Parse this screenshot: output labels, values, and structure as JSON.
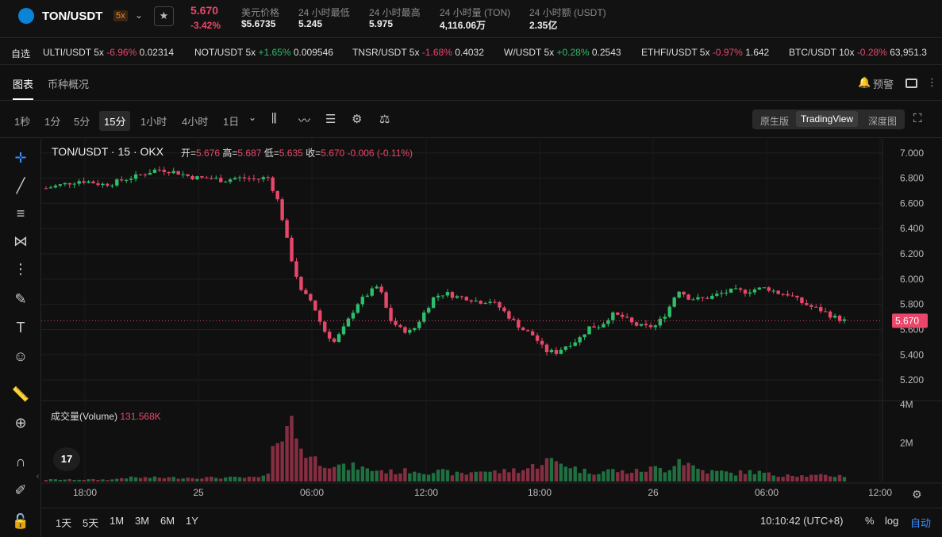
{
  "header": {
    "pair": "TON/USDT",
    "leverage": "5x",
    "last_price": "5.670",
    "change": "-3.42%",
    "stats": [
      {
        "k": "美元价格",
        "v": "$5.6735"
      },
      {
        "k": "24 小时最低",
        "v": "5.245"
      },
      {
        "k": "24 小时最高",
        "v": "5.975"
      },
      {
        "k": "24 小时量 (TON)",
        "v": "4,116.06万"
      },
      {
        "k": "24 小时额 (USDT)",
        "v": "2.35亿"
      }
    ]
  },
  "watchlist": {
    "label": "自选",
    "items": [
      {
        "pair": "ULTI/USDT 5x",
        "chg": "-6.96%",
        "price": "0.02314",
        "dir": "down"
      },
      {
        "pair": "NOT/USDT 5x",
        "chg": "+1.65%",
        "price": "0.009546",
        "dir": "up"
      },
      {
        "pair": "TNSR/USDT 5x",
        "chg": "-1.68%",
        "price": "0.4032",
        "dir": "down"
      },
      {
        "pair": "W/USDT 5x",
        "chg": "+0.28%",
        "price": "0.2543",
        "dir": "up"
      },
      {
        "pair": "ETHFI/USDT 5x",
        "chg": "-0.97%",
        "price": "1.642",
        "dir": "down"
      },
      {
        "pair": "BTC/USDT 10x",
        "chg": "-0.28%",
        "price": "63,951.3",
        "dir": "down"
      }
    ]
  },
  "tabs": {
    "chart": "图表",
    "info": "币种概况",
    "alert": "预警"
  },
  "timeframes": [
    "1秒",
    "1分",
    "5分",
    "15分",
    "1小时",
    "4小时",
    "1日"
  ],
  "active_tf": "15分",
  "views": {
    "basic": "原生版",
    "tv": "TradingView",
    "depth": "深度图"
  },
  "legend": {
    "title": "TON/USDT · 15 · OKX",
    "o_l": "开=",
    "o": "5.676",
    "h_l": "高=",
    "h": "5.687",
    "l_l": "低=",
    "l": "5.635",
    "c_l": "收=",
    "c": "5.670",
    "delta": "-0.006 (-0.11%)"
  },
  "volume": {
    "label": "成交量(Volume)",
    "value": "131.568K"
  },
  "ranges": [
    "1天",
    "5天",
    "1M",
    "3M",
    "6M",
    "1Y"
  ],
  "clock": "10:10:42 (UTC+8)",
  "scale_opts": {
    "pct": "%",
    "log": "log",
    "auto": "自动"
  },
  "colors": {
    "up": "#2ebd6a",
    "down": "#e8476a",
    "bg": "#101010"
  },
  "chart_data": {
    "type": "candlestick",
    "price_ticks": [
      "7.000",
      "6.800",
      "6.600",
      "6.400",
      "6.200",
      "6.000",
      "5.800",
      "5.600",
      "5.400",
      "5.200"
    ],
    "ylim": [
      5.1,
      7.03
    ],
    "vol_ticks": [
      "4M",
      "2M"
    ],
    "vol_max": 4,
    "time_ticks": [
      "18:00",
      "25",
      "06:00",
      "12:00",
      "18:00",
      "26",
      "06:00",
      "12:00"
    ],
    "last_label": "5.670",
    "close_path": [
      6.72,
      6.74,
      6.76,
      6.78,
      6.77,
      6.75,
      6.76,
      6.79,
      6.81,
      6.84,
      6.87,
      6.86,
      6.84,
      6.81,
      6.8,
      6.8,
      6.78,
      6.8,
      6.8,
      6.79,
      6.81,
      6.6,
      6.2,
      5.9,
      5.82,
      5.6,
      5.5,
      5.63,
      5.8,
      5.88,
      5.95,
      5.68,
      5.6,
      5.58,
      5.72,
      5.86,
      5.89,
      5.86,
      5.85,
      5.82,
      5.83,
      5.77,
      5.68,
      5.6,
      5.55,
      5.43,
      5.42,
      5.48,
      5.52,
      5.62,
      5.63,
      5.72,
      5.7,
      5.64,
      5.62,
      5.63,
      5.74,
      5.92,
      5.85,
      5.84,
      5.86,
      5.89,
      5.91,
      5.9,
      5.92,
      5.93,
      5.89,
      5.88,
      5.82,
      5.78,
      5.75,
      5.7,
      5.67
    ],
    "volume_path": [
      0.1,
      0.1,
      0.1,
      0.1,
      0.1,
      0.1,
      0.1,
      0.2,
      0.2,
      0.2,
      0.2,
      0.2,
      0.2,
      0.2,
      0.2,
      0.2,
      0.2,
      0.2,
      0.2,
      0.2,
      0.3,
      2.8,
      3.2,
      1.8,
      1.2,
      1.0,
      0.9,
      0.7,
      0.8,
      0.6,
      0.6,
      0.5,
      0.5,
      0.6,
      0.5,
      0.5,
      0.5,
      0.4,
      0.4,
      0.6,
      0.5,
      0.5,
      0.6,
      0.6,
      0.8,
      1.1,
      1.0,
      0.9,
      0.6,
      0.5,
      0.5,
      0.6,
      0.5,
      0.5,
      0.6,
      0.7,
      0.6,
      1.2,
      0.9,
      0.6,
      0.5,
      0.5,
      0.4,
      0.5,
      0.5,
      0.4,
      0.3,
      0.4,
      0.3,
      0.3,
      0.3,
      0.3,
      0.3
    ]
  }
}
